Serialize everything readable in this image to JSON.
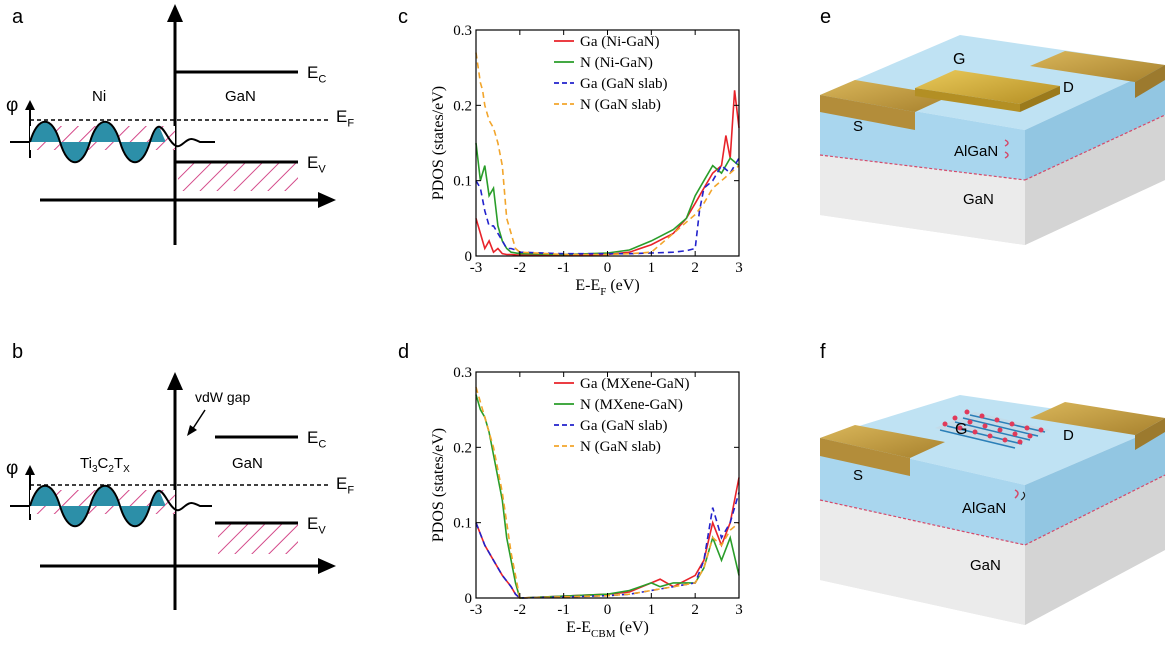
{
  "figure": {
    "panel_a": {
      "letter": "a",
      "phi": "φ",
      "metal": "Ni",
      "semiconductor": "GaN",
      "ec": {
        "base": "E",
        "sub": "C"
      },
      "ef": {
        "base": "E",
        "sub": "F"
      },
      "ev": {
        "base": "E",
        "sub": "V"
      }
    },
    "panel_b": {
      "letter": "b",
      "phi": "φ",
      "metal": {
        "p1": "Ti",
        "s1": "3",
        "p2": "C",
        "s2": "2",
        "p3": "T",
        "s3": "X"
      },
      "semiconductor": "GaN",
      "gap_label": "vdW gap",
      "ec": {
        "base": "E",
        "sub": "C"
      },
      "ef": {
        "base": "E",
        "sub": "F"
      },
      "ev": {
        "base": "E",
        "sub": "V"
      }
    },
    "panel_c": {
      "letter": "c"
    },
    "panel_d": {
      "letter": "d"
    },
    "panel_e": {
      "letter": "e",
      "gate": "G",
      "source": "S",
      "drain": "D",
      "barrier": "AlGaN",
      "substrate": "GaN",
      "colors": {
        "contact": "#c9a34a",
        "gate": "#d8b13c",
        "barrier": "#a9d6ee",
        "substrate": "#e6e6e6"
      }
    },
    "panel_f": {
      "letter": "f",
      "gate": "G",
      "source": "S",
      "drain": "D",
      "barrier": "AlGaN",
      "substrate": "GaN"
    }
  },
  "chart_data": [
    {
      "type": "line",
      "panel": "c",
      "ylabel": "PDOS (states/eV)",
      "xlabel": {
        "base": "E-E",
        "sub": "F",
        "unit": "(eV)"
      },
      "xlim": [
        -3,
        3
      ],
      "ylim": [
        0,
        0.3
      ],
      "xticks": [
        "-3",
        "-2",
        "-1",
        "0",
        "1",
        "2",
        "3"
      ],
      "yticks": [
        "0",
        "0.1",
        "0.2",
        "0.3"
      ],
      "legend_position": "top-right",
      "series": [
        {
          "name": "Ga (Ni-GaN)",
          "color": "#e8232a",
          "dash": "",
          "x": [
            -3,
            -2.9,
            -2.8,
            -2.7,
            -2.6,
            -2.5,
            -2.4,
            -2.3,
            -2.2,
            -2,
            -1,
            0,
            0.5,
            1,
            1.5,
            1.8,
            2,
            2.2,
            2.4,
            2.6,
            2.7,
            2.8,
            2.9,
            3
          ],
          "y": [
            0.05,
            0.03,
            0.01,
            0.02,
            0.005,
            0.01,
            0.003,
            0.002,
            0.002,
            0.001,
            0.001,
            0.002,
            0.005,
            0.015,
            0.03,
            0.05,
            0.07,
            0.09,
            0.11,
            0.12,
            0.16,
            0.13,
            0.22,
            0.17
          ]
        },
        {
          "name": "N (Ni-GaN)",
          "color": "#2a9d2a",
          "dash": "",
          "x": [
            -3,
            -2.9,
            -2.8,
            -2.7,
            -2.6,
            -2.5,
            -2.4,
            -2.3,
            -2.2,
            -2,
            -1,
            0,
            0.5,
            1,
            1.5,
            1.8,
            2,
            2.2,
            2.4,
            2.6,
            2.8,
            3
          ],
          "y": [
            0.15,
            0.1,
            0.12,
            0.08,
            0.09,
            0.04,
            0.02,
            0.01,
            0.005,
            0.003,
            0.002,
            0.004,
            0.008,
            0.02,
            0.035,
            0.05,
            0.08,
            0.1,
            0.12,
            0.11,
            0.13,
            0.12
          ]
        },
        {
          "name": "Ga (GaN slab)",
          "color": "#2222cc",
          "dash": "6,4",
          "x": [
            -3,
            -2.9,
            -2.8,
            -2.7,
            -2.6,
            -2.5,
            -2.4,
            -2.3,
            -2.2,
            -2.1,
            -2,
            -1,
            0,
            0.5,
            1,
            1.5,
            1.8,
            2,
            2.1,
            2.2,
            2.4,
            2.6,
            2.8,
            3
          ],
          "y": [
            0.1,
            0.09,
            0.06,
            0.04,
            0.04,
            0.03,
            0.02,
            0.01,
            0.01,
            0.008,
            0.005,
            0.003,
            0.003,
            0.003,
            0.004,
            0.005,
            0.007,
            0.01,
            0.06,
            0.09,
            0.1,
            0.12,
            0.11,
            0.13
          ]
        },
        {
          "name": "N (GaN slab)",
          "color": "#f2a52b",
          "dash": "6,4",
          "x": [
            -3,
            -2.95,
            -2.9,
            -2.85,
            -2.8,
            -2.7,
            -2.6,
            -2.5,
            -2.4,
            -2.3,
            -2.2,
            -2.1,
            -2,
            -1,
            0,
            0.5,
            1,
            1.5,
            2,
            2.2,
            2.4,
            2.6,
            2.8,
            3
          ],
          "y": [
            0.27,
            0.25,
            0.23,
            0.22,
            0.2,
            0.18,
            0.17,
            0.15,
            0.12,
            0.05,
            0.03,
            0.01,
            0.005,
            0.002,
            0.002,
            0.003,
            0.005,
            0.03,
            0.055,
            0.07,
            0.09,
            0.1,
            0.11,
            0.12
          ]
        }
      ]
    },
    {
      "type": "line",
      "panel": "d",
      "ylabel": "PDOS (states/eV)",
      "xlabel": {
        "base": "E-E",
        "sub": "CBM",
        "unit": "(eV)"
      },
      "xlim": [
        -3,
        3
      ],
      "ylim": [
        0,
        0.3
      ],
      "xticks": [
        "-3",
        "-2",
        "-1",
        "0",
        "1",
        "2",
        "3"
      ],
      "yticks": [
        "0",
        "0.1",
        "0.2",
        "0.3"
      ],
      "legend_position": "top-right",
      "series": [
        {
          "name": "Ga (MXene-GaN)",
          "color": "#e8232a",
          "dash": "",
          "x": [
            -3,
            -2.8,
            -2.6,
            -2.4,
            -2.2,
            -2.1,
            -2,
            0,
            0.5,
            1,
            1.2,
            1.5,
            2,
            2.2,
            2.4,
            2.6,
            2.8,
            3
          ],
          "y": [
            0.1,
            0.07,
            0.05,
            0.03,
            0.015,
            0.005,
            0,
            0.005,
            0.008,
            0.02,
            0.025,
            0.015,
            0.03,
            0.05,
            0.1,
            0.07,
            0.1,
            0.16
          ]
        },
        {
          "name": "N (MXene-GaN)",
          "color": "#2a9d2a",
          "dash": "",
          "x": [
            -3,
            -2.9,
            -2.8,
            -2.7,
            -2.6,
            -2.5,
            -2.4,
            -2.3,
            -2.2,
            -2.1,
            -2,
            0,
            0.5,
            1,
            1.2,
            1.5,
            2,
            2.2,
            2.4,
            2.6,
            2.8,
            3
          ],
          "y": [
            0.27,
            0.25,
            0.24,
            0.22,
            0.19,
            0.16,
            0.13,
            0.08,
            0.05,
            0.02,
            0,
            0.005,
            0.01,
            0.02,
            0.015,
            0.02,
            0.02,
            0.04,
            0.08,
            0.05,
            0.08,
            0.03
          ]
        },
        {
          "name": "Ga (GaN slab)",
          "color": "#2222cc",
          "dash": "6,4",
          "x": [
            -3,
            -2.8,
            -2.6,
            -2.4,
            -2.2,
            -2.1,
            -2,
            0,
            0.5,
            1,
            1.5,
            2,
            2.2,
            2.4,
            2.6,
            2.8,
            3
          ],
          "y": [
            0.1,
            0.07,
            0.05,
            0.03,
            0.015,
            0.005,
            0,
            0.003,
            0.005,
            0.01,
            0.015,
            0.02,
            0.05,
            0.12,
            0.08,
            0.1,
            0.14
          ]
        },
        {
          "name": "N (GaN slab)",
          "color": "#f2a52b",
          "dash": "6,4",
          "x": [
            -3,
            -2.9,
            -2.8,
            -2.7,
            -2.6,
            -2.5,
            -2.4,
            -2.3,
            -2.2,
            -2.1,
            -2,
            0,
            0.5,
            1,
            1.5,
            2,
            2.2,
            2.4,
            2.6,
            2.8,
            3
          ],
          "y": [
            0.28,
            0.26,
            0.24,
            0.22,
            0.2,
            0.17,
            0.14,
            0.1,
            0.06,
            0.03,
            0,
            0.003,
            0.005,
            0.01,
            0.015,
            0.02,
            0.04,
            0.08,
            0.07,
            0.09,
            0.1
          ]
        }
      ]
    }
  ]
}
